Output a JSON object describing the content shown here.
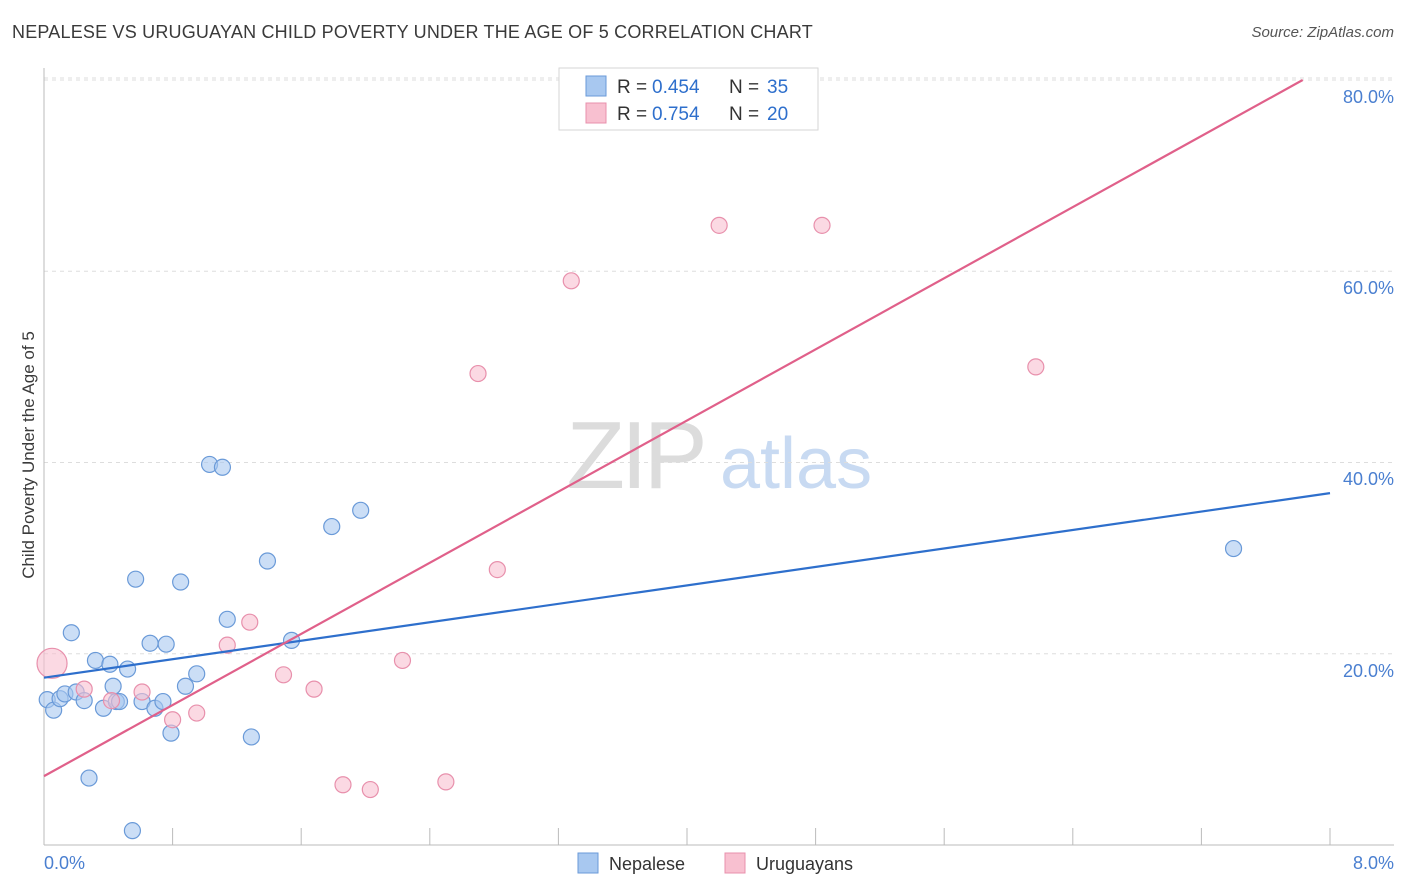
{
  "chart_data": {
    "type": "scatter",
    "title": "NEPALESE VS URUGUAYAN CHILD POVERTY UNDER THE AGE OF 5 CORRELATION CHART",
    "source": "Source: ZipAtlas.com",
    "xlabel": "",
    "ylabel": "Child Poverty Under the Age of 5",
    "xlim": [
      0,
      8
    ],
    "ylim": [
      0,
      80
    ],
    "x_tick_labels": [
      "0.0%",
      "8.0%"
    ],
    "y_tick_labels": [
      "20.0%",
      "40.0%",
      "60.0%",
      "80.0%"
    ],
    "y_tick_values": [
      20,
      40,
      60,
      80
    ],
    "watermark": {
      "zip": "ZIP",
      "atlas": "atlas"
    },
    "legend_top": [
      {
        "r_label": "R =",
        "r_value": "0.454",
        "n_label": "N =",
        "n_value": "35"
      },
      {
        "r_label": "R =",
        "r_value": "0.754",
        "n_label": "N =",
        "n_value": "20"
      }
    ],
    "legend_bottom": [
      "Nepalese",
      "Uruguayans"
    ],
    "colors": {
      "nepalese_fill": "#a8c8f0",
      "nepalese_stroke": "#6a9ad8",
      "nepalese_line": "#2e6fcc",
      "uruguayan_fill": "#f8c0d0",
      "uruguayan_stroke": "#e890ac",
      "uruguayan_line": "#e0608a",
      "tick_label": "#4a7fd0",
      "grid": "#dddddd"
    },
    "series": [
      {
        "name": "Nepalese",
        "trend": {
          "x": [
            0,
            8
          ],
          "y": [
            17.5,
            36.8
          ]
        },
        "points": [
          {
            "x": 0.02,
            "y": 15.2
          },
          {
            "x": 0.06,
            "y": 14.1
          },
          {
            "x": 0.1,
            "y": 15.3
          },
          {
            "x": 0.13,
            "y": 15.8
          },
          {
            "x": 0.17,
            "y": 22.2
          },
          {
            "x": 0.2,
            "y": 16.0
          },
          {
            "x": 0.25,
            "y": 15.1
          },
          {
            "x": 0.28,
            "y": 7.0
          },
          {
            "x": 0.32,
            "y": 19.3
          },
          {
            "x": 0.37,
            "y": 14.3
          },
          {
            "x": 0.41,
            "y": 18.9
          },
          {
            "x": 0.43,
            "y": 16.6
          },
          {
            "x": 0.45,
            "y": 15.0
          },
          {
            "x": 0.47,
            "y": 15.0
          },
          {
            "x": 0.52,
            "y": 18.4
          },
          {
            "x": 0.55,
            "y": 1.5
          },
          {
            "x": 0.57,
            "y": 27.8
          },
          {
            "x": 0.61,
            "y": 15.0
          },
          {
            "x": 0.66,
            "y": 21.1
          },
          {
            "x": 0.69,
            "y": 14.3
          },
          {
            "x": 0.74,
            "y": 15.0
          },
          {
            "x": 0.76,
            "y": 21.0
          },
          {
            "x": 0.79,
            "y": 11.7
          },
          {
            "x": 0.85,
            "y": 27.5
          },
          {
            "x": 0.88,
            "y": 16.6
          },
          {
            "x": 0.95,
            "y": 17.9
          },
          {
            "x": 1.03,
            "y": 39.8
          },
          {
            "x": 1.11,
            "y": 39.5
          },
          {
            "x": 1.14,
            "y": 23.6
          },
          {
            "x": 1.29,
            "y": 11.3
          },
          {
            "x": 1.39,
            "y": 29.7
          },
          {
            "x": 1.54,
            "y": 21.4
          },
          {
            "x": 1.79,
            "y": 33.3
          },
          {
            "x": 1.97,
            "y": 35.0
          },
          {
            "x": 7.4,
            "y": 31.0
          }
        ]
      },
      {
        "name": "Uruguayans",
        "trend": {
          "x": [
            0,
            7.83
          ],
          "y": [
            7.2,
            80.0
          ]
        },
        "points": [
          {
            "x": 0.05,
            "y": 19.0
          },
          {
            "x": 0.25,
            "y": 16.3
          },
          {
            "x": 0.42,
            "y": 15.1
          },
          {
            "x": 0.61,
            "y": 16.0
          },
          {
            "x": 0.8,
            "y": 13.1
          },
          {
            "x": 0.95,
            "y": 13.8
          },
          {
            "x": 1.14,
            "y": 20.9
          },
          {
            "x": 1.28,
            "y": 23.3
          },
          {
            "x": 1.49,
            "y": 17.8
          },
          {
            "x": 1.68,
            "y": 16.3
          },
          {
            "x": 1.86,
            "y": 6.3
          },
          {
            "x": 2.03,
            "y": 5.8
          },
          {
            "x": 2.23,
            "y": 19.3
          },
          {
            "x": 2.5,
            "y": 6.6
          },
          {
            "x": 2.7,
            "y": 49.3
          },
          {
            "x": 2.82,
            "y": 28.8
          },
          {
            "x": 3.28,
            "y": 59.0
          },
          {
            "x": 4.2,
            "y": 64.8
          },
          {
            "x": 4.84,
            "y": 64.8
          },
          {
            "x": 6.17,
            "y": 50.0
          }
        ]
      }
    ]
  }
}
